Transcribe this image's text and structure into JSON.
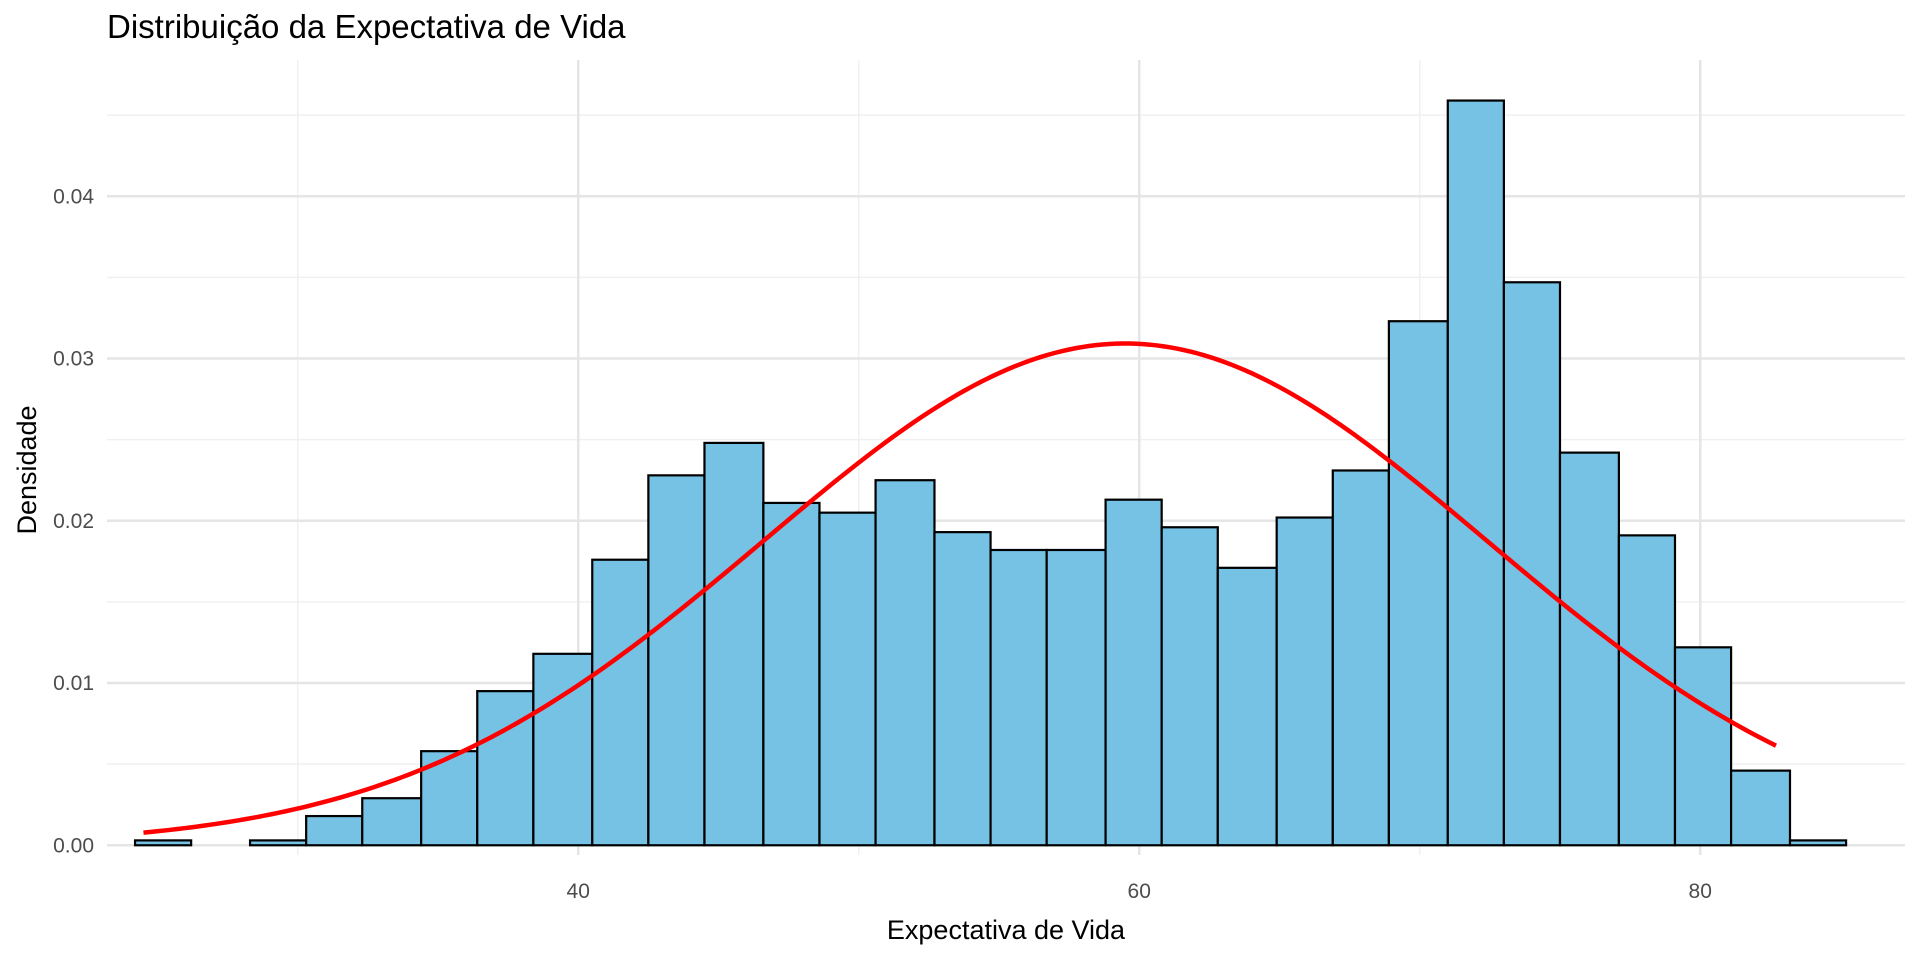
{
  "chart_data": {
    "type": "bar",
    "title": "Distribuição da Expectativa de Vida",
    "xlabel": "Expectativa de Vida",
    "ylabel": "Densidade",
    "xlim": [
      23.2,
      87.3
    ],
    "ylim": [
      -0.0006,
      0.0484
    ],
    "x_ticks": [
      40,
      60,
      80
    ],
    "x_tick_labels": [
      "40",
      "60",
      "80"
    ],
    "x_minor_ticks": [
      30,
      50,
      70
    ],
    "y_ticks": [
      0,
      0.01,
      0.02,
      0.03,
      0.04
    ],
    "y_tick_labels": [
      "0.00",
      "0.01",
      "0.02",
      "0.03",
      "0.04"
    ],
    "y_minor_ticks": [
      0.005,
      0.015,
      0.025,
      0.035,
      0.045
    ],
    "grid": true,
    "legend": "none",
    "bar_fill_color": "#76C2E5",
    "bar_edge_color": "#000000",
    "curve_color": "#FF0000",
    "histogram": {
      "bin_edges": [
        24.2,
        26.2,
        28.3,
        30.3,
        32.3,
        34.4,
        36.4,
        38.4,
        40.5,
        42.5,
        44.5,
        46.6,
        48.6,
        50.6,
        52.7,
        54.7,
        56.7,
        58.8,
        60.8,
        62.8,
        64.9,
        66.9,
        68.9,
        71.0,
        73.0,
        75.0,
        77.1,
        79.1,
        81.1,
        83.2,
        85.2
      ],
      "densities": [
        0.0003,
        0.0,
        0.0003,
        0.0018,
        0.0029,
        0.0058,
        0.0095,
        0.0118,
        0.0176,
        0.0228,
        0.0248,
        0.0211,
        0.0205,
        0.0225,
        0.0193,
        0.0182,
        0.0182,
        0.0213,
        0.0196,
        0.0171,
        0.0202,
        0.0231,
        0.0323,
        0.0459,
        0.0347,
        0.0242,
        0.0191,
        0.0122,
        0.0046,
        0.0003
      ]
    },
    "normal_curve": {
      "mean": 59.5,
      "sd": 12.9,
      "x_range": [
        24.5,
        82.7
      ]
    }
  }
}
